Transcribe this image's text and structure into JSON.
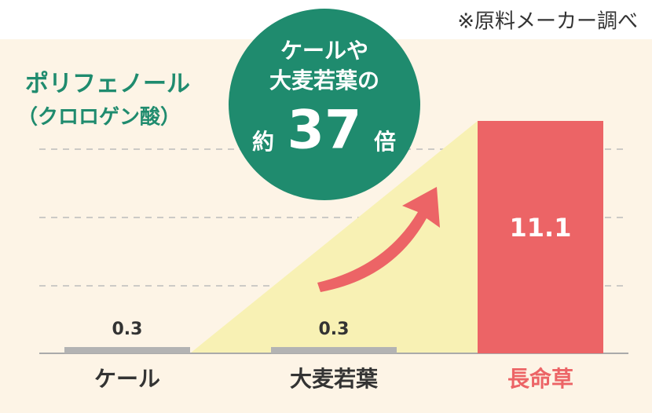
{
  "chart_data": {
    "type": "bar",
    "title": "ポリフェノール",
    "subtitle": "（クロロゲン酸）",
    "note": "※原料メーカー調べ",
    "callout": {
      "line1": "ケールや",
      "line2": "大麦若葉の",
      "prefix": "約",
      "multiplier": 37,
      "suffix": "倍",
      "color": "#1f8b6e"
    },
    "categories": [
      "ケール",
      "大麦若葉",
      "長命草"
    ],
    "values": [
      0.3,
      0.3,
      11.1
    ],
    "colors": [
      "#b3b3b3",
      "#b3b3b3",
      "#ec6466"
    ],
    "category_colors": [
      "#333333",
      "#333333",
      "#ec6466"
    ],
    "ylim": [
      0,
      15
    ],
    "grid": true
  }
}
